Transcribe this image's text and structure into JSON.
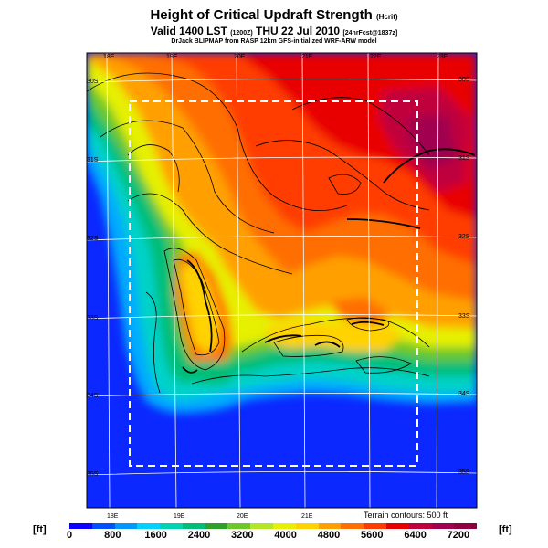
{
  "title": "Height of Critical Updraft Strength",
  "title_unit": "(Hcrit)",
  "subtitle_main": "Valid 1400 LST",
  "subtitle_code": "(1200Z)",
  "subtitle_date": "THU 22 Jul 2010",
  "subtitle_fcst": "[24hrFcst@1837z]",
  "credit": "DrJack BLIPMAP from RASP 12km GFS-initialized WRF-ARW model",
  "terrain_note": "Terrain contours: 500 ft",
  "unit": "[ft]",
  "longitudes_top": [
    "18E",
    "19E",
    "20E",
    "21E",
    "22E",
    "23E"
  ],
  "longitudes_bottom": [
    "18E",
    "19E",
    "20E",
    "21E"
  ],
  "latitudes": [
    "30S",
    "31S",
    "32S",
    "33S",
    "34S",
    "35S"
  ],
  "colorbar": {
    "labels": [
      "0",
      "800",
      "1600",
      "2400",
      "3200",
      "4000",
      "4800",
      "5600",
      "6400",
      "7200"
    ],
    "colors": [
      "#0a00ff",
      "#0050ff",
      "#0098ff",
      "#00d2ff",
      "#00d2b4",
      "#00be78",
      "#30a028",
      "#6ec828",
      "#b4e628",
      "#e6f000",
      "#ffd200",
      "#ffa000",
      "#ff6e00",
      "#ff3c00",
      "#e80000",
      "#c0003c",
      "#a00050",
      "#900040"
    ]
  },
  "colors": {
    "sea": "#0a28ff",
    "boundary": "#ffffff"
  }
}
